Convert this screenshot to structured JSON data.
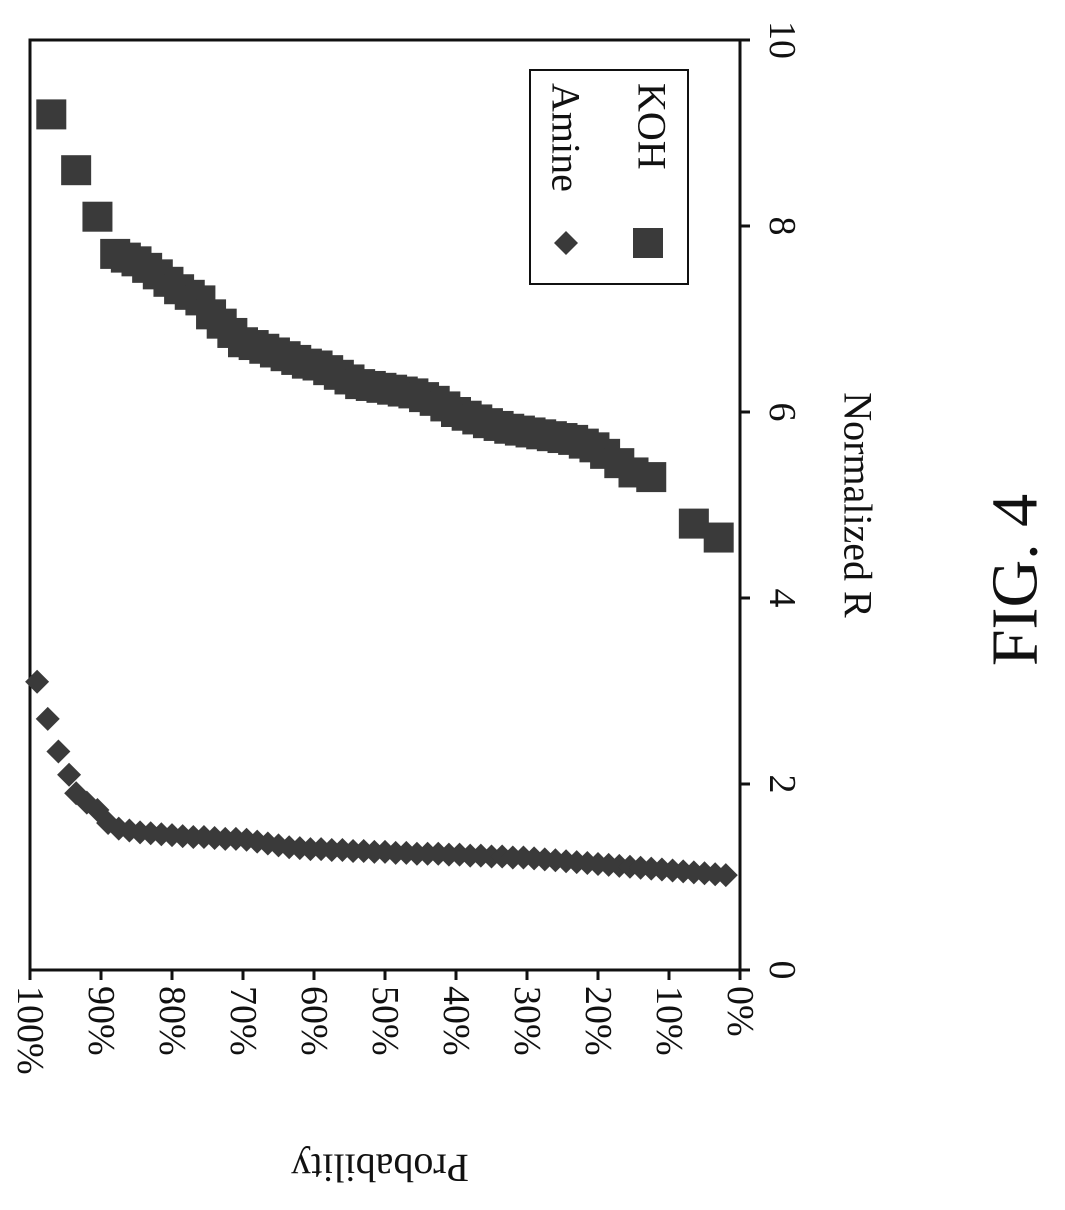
{
  "chart_data": {
    "type": "scatter",
    "orientation": "rotated-90-clockwise",
    "xlabel": "Normalized R",
    "ylabel": "Probability",
    "figure_label": "FIG. 4",
    "xlim": [
      0,
      10
    ],
    "ylim": [
      0,
      1
    ],
    "x_ticks": [
      "0",
      "2",
      "4",
      "6",
      "8",
      "10"
    ],
    "y_ticks": [
      "0%",
      "10%",
      "20%",
      "30%",
      "40%",
      "50%",
      "60%",
      "70%",
      "80%",
      "90%",
      "100%"
    ],
    "grid": false,
    "legend_position": "top-right",
    "colors": {
      "marker": "#3a3a3a",
      "axis": "#111111",
      "background": "#ffffff"
    },
    "series": [
      {
        "name": "Amine",
        "marker": "diamond",
        "points": [
          [
            3.1,
            0.99
          ],
          [
            2.7,
            0.975
          ],
          [
            2.35,
            0.96
          ],
          [
            2.1,
            0.945
          ],
          [
            1.9,
            0.935
          ],
          [
            1.8,
            0.92
          ],
          [
            1.72,
            0.905
          ],
          [
            1.58,
            0.89
          ],
          [
            1.52,
            0.875
          ],
          [
            1.5,
            0.86
          ],
          [
            1.48,
            0.845
          ],
          [
            1.47,
            0.83
          ],
          [
            1.46,
            0.815
          ],
          [
            1.45,
            0.8
          ],
          [
            1.44,
            0.785
          ],
          [
            1.43,
            0.77
          ],
          [
            1.43,
            0.755
          ],
          [
            1.42,
            0.74
          ],
          [
            1.41,
            0.725
          ],
          [
            1.41,
            0.71
          ],
          [
            1.4,
            0.695
          ],
          [
            1.38,
            0.68
          ],
          [
            1.36,
            0.665
          ],
          [
            1.34,
            0.65
          ],
          [
            1.32,
            0.635
          ],
          [
            1.31,
            0.62
          ],
          [
            1.3,
            0.605
          ],
          [
            1.3,
            0.59
          ],
          [
            1.29,
            0.575
          ],
          [
            1.29,
            0.56
          ],
          [
            1.28,
            0.545
          ],
          [
            1.28,
            0.53
          ],
          [
            1.27,
            0.515
          ],
          [
            1.27,
            0.5
          ],
          [
            1.26,
            0.485
          ],
          [
            1.26,
            0.47
          ],
          [
            1.25,
            0.455
          ],
          [
            1.25,
            0.44
          ],
          [
            1.25,
            0.425
          ],
          [
            1.24,
            0.41
          ],
          [
            1.24,
            0.395
          ],
          [
            1.23,
            0.38
          ],
          [
            1.23,
            0.365
          ],
          [
            1.22,
            0.35
          ],
          [
            1.22,
            0.335
          ],
          [
            1.21,
            0.32
          ],
          [
            1.21,
            0.305
          ],
          [
            1.2,
            0.29
          ],
          [
            1.19,
            0.275
          ],
          [
            1.18,
            0.26
          ],
          [
            1.17,
            0.245
          ],
          [
            1.16,
            0.23
          ],
          [
            1.15,
            0.215
          ],
          [
            1.14,
            0.2
          ],
          [
            1.13,
            0.185
          ],
          [
            1.12,
            0.17
          ],
          [
            1.11,
            0.155
          ],
          [
            1.1,
            0.14
          ],
          [
            1.09,
            0.125
          ],
          [
            1.08,
            0.11
          ],
          [
            1.07,
            0.095
          ],
          [
            1.06,
            0.08
          ],
          [
            1.05,
            0.065
          ],
          [
            1.04,
            0.05
          ],
          [
            1.03,
            0.035
          ],
          [
            1.02,
            0.02
          ]
        ]
      },
      {
        "name": "KOH",
        "marker": "square",
        "points": [
          [
            9.2,
            0.97
          ],
          [
            8.6,
            0.935
          ],
          [
            8.1,
            0.905
          ],
          [
            7.7,
            0.88
          ],
          [
            7.66,
            0.865
          ],
          [
            7.62,
            0.85
          ],
          [
            7.55,
            0.835
          ],
          [
            7.48,
            0.82
          ],
          [
            7.4,
            0.805
          ],
          [
            7.32,
            0.79
          ],
          [
            7.26,
            0.775
          ],
          [
            7.2,
            0.76
          ],
          [
            7.05,
            0.745
          ],
          [
            6.95,
            0.73
          ],
          [
            6.85,
            0.715
          ],
          [
            6.75,
            0.7
          ],
          [
            6.72,
            0.685
          ],
          [
            6.68,
            0.67
          ],
          [
            6.64,
            0.655
          ],
          [
            6.6,
            0.64
          ],
          [
            6.56,
            0.625
          ],
          [
            6.52,
            0.61
          ],
          [
            6.5,
            0.595
          ],
          [
            6.45,
            0.58
          ],
          [
            6.4,
            0.565
          ],
          [
            6.35,
            0.55
          ],
          [
            6.3,
            0.535
          ],
          [
            6.28,
            0.52
          ],
          [
            6.26,
            0.505
          ],
          [
            6.24,
            0.49
          ],
          [
            6.22,
            0.475
          ],
          [
            6.2,
            0.46
          ],
          [
            6.16,
            0.445
          ],
          [
            6.12,
            0.43
          ],
          [
            6.06,
            0.415
          ],
          [
            6.0,
            0.4
          ],
          [
            5.96,
            0.385
          ],
          [
            5.92,
            0.37
          ],
          [
            5.88,
            0.355
          ],
          [
            5.85,
            0.34
          ],
          [
            5.82,
            0.325
          ],
          [
            5.8,
            0.31
          ],
          [
            5.78,
            0.295
          ],
          [
            5.76,
            0.28
          ],
          [
            5.74,
            0.265
          ],
          [
            5.72,
            0.25
          ],
          [
            5.7,
            0.235
          ],
          [
            5.66,
            0.22
          ],
          [
            5.62,
            0.205
          ],
          [
            5.55,
            0.19
          ],
          [
            5.45,
            0.17
          ],
          [
            5.35,
            0.15
          ],
          [
            5.3,
            0.125
          ],
          [
            4.8,
            0.065
          ],
          [
            4.65,
            0.03
          ]
        ]
      }
    ]
  }
}
